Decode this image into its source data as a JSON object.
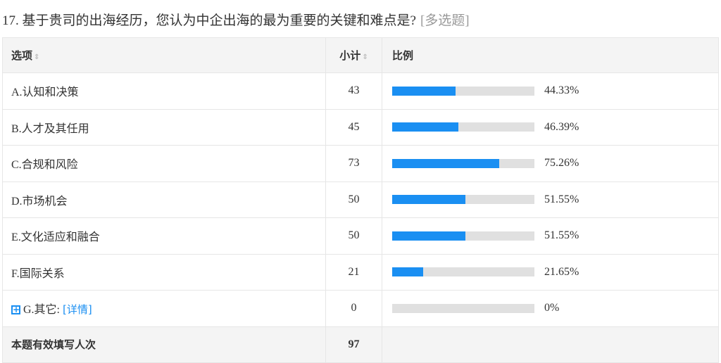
{
  "question": {
    "title": "17. 基于贵司的出海经历，您认为中企出海的最为重要的关键和难点是?",
    "type": "[多选题]"
  },
  "headers": {
    "option": "选项",
    "count": "小计",
    "ratio": "比例",
    "sort_icon": "sort-icon"
  },
  "rows": [
    {
      "label": "A.认知和决策",
      "count": "43",
      "percent": "44.33%",
      "value": 44.33
    },
    {
      "label": "B.人才及其任用",
      "count": "45",
      "percent": "46.39%",
      "value": 46.39
    },
    {
      "label": "C.合规和风险",
      "count": "73",
      "percent": "75.26%",
      "value": 75.26
    },
    {
      "label": "D.市场机会",
      "count": "50",
      "percent": "51.55%",
      "value": 51.55
    },
    {
      "label": "E.文化适应和融合",
      "count": "50",
      "percent": "51.55%",
      "value": 51.55
    },
    {
      "label": "F.国际关系",
      "count": "21",
      "percent": "21.65%",
      "value": 21.65
    },
    {
      "label": "G.其它:",
      "count": "0",
      "percent": "0%",
      "value": 0,
      "detail_link": "[详情]",
      "expand_icon": "plus-square-icon"
    }
  ],
  "total": {
    "label": "本题有效填写人次",
    "count": "97"
  },
  "colors": {
    "bar": "#1a8ff2",
    "track": "#e0e0e0",
    "link": "#1a8ff2"
  }
}
